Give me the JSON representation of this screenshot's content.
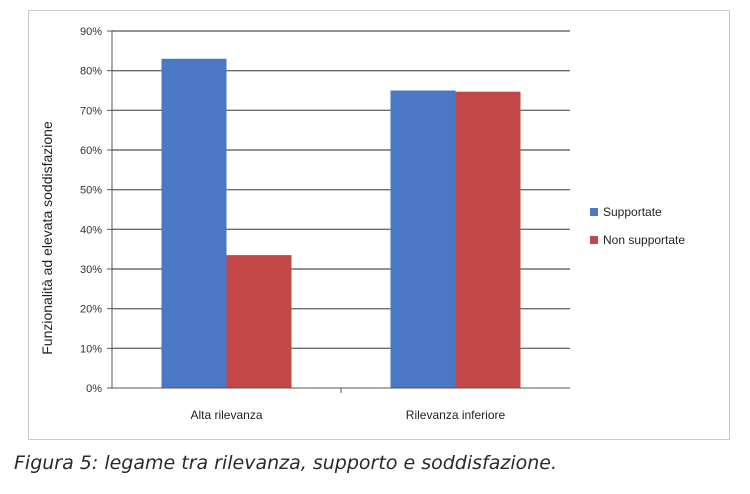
{
  "chart_data": {
    "type": "bar",
    "categories": [
      "Alta rilevanza",
      "Rilevanza inferiore"
    ],
    "series": [
      {
        "name": "Supportate",
        "values": [
          83,
          75
        ],
        "color": "#4a78c4"
      },
      {
        "name": "Non supportate",
        "values": [
          33.5,
          74.7
        ],
        "color": "#c24747"
      }
    ],
    "ylabel": "Funzionalità ad elevata soddisfazione",
    "ylim": [
      0,
      90
    ],
    "yticks": [
      "0%",
      "10%",
      "20%",
      "30%",
      "40%",
      "50%",
      "60%",
      "70%",
      "80%",
      "90%"
    ],
    "grid": true,
    "legend_position": "right"
  },
  "caption": "Figura 5: legame tra rilevanza, supporto e soddisfazione."
}
